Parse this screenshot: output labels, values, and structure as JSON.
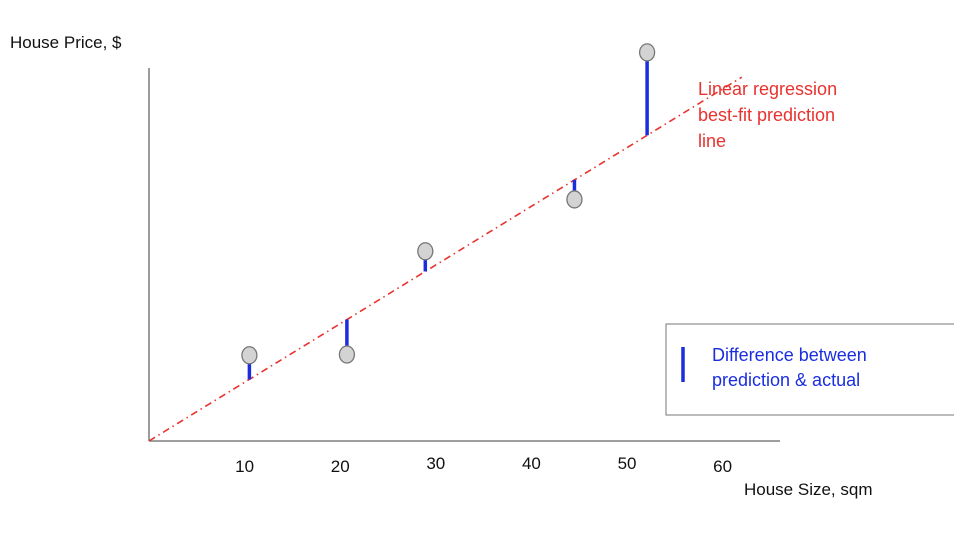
{
  "chart_data": {
    "type": "scatter",
    "ylabel": "House Price, $",
    "xlabel": "House Size, sqm",
    "x_ticks": [
      {
        "value": 10,
        "label": "10"
      },
      {
        "value": 20,
        "label": "20"
      },
      {
        "value": 30,
        "label": "30"
      },
      {
        "value": 40,
        "label": "40"
      },
      {
        "value": 50,
        "label": "50"
      },
      {
        "value": 60,
        "label": "60"
      }
    ],
    "xlim": [
      0,
      66
    ],
    "ylim": [
      0,
      100
    ],
    "regression_line": {
      "label_lines": [
        "Linear regression",
        "best-fit prediction",
        "line"
      ],
      "slope": 1.54,
      "intercept": 0,
      "x_range": [
        0,
        62
      ],
      "color": "#e8322e",
      "style": "dash-dot"
    },
    "points": [
      {
        "x": 10.5,
        "y": 22.5
      },
      {
        "x": 20.7,
        "y": 22.7
      },
      {
        "x": 28.9,
        "y": 49.8
      },
      {
        "x": 44.5,
        "y": 63.4
      },
      {
        "x": 52.1,
        "y": 102.0
      }
    ],
    "residual_color": "#1a2ee0",
    "point_fill": "#d3d3d3",
    "point_stroke": "#777777",
    "legend": {
      "label_lines": [
        "Difference between",
        "prediction & actual"
      ],
      "placement": "bottom-right"
    },
    "grid": false
  }
}
